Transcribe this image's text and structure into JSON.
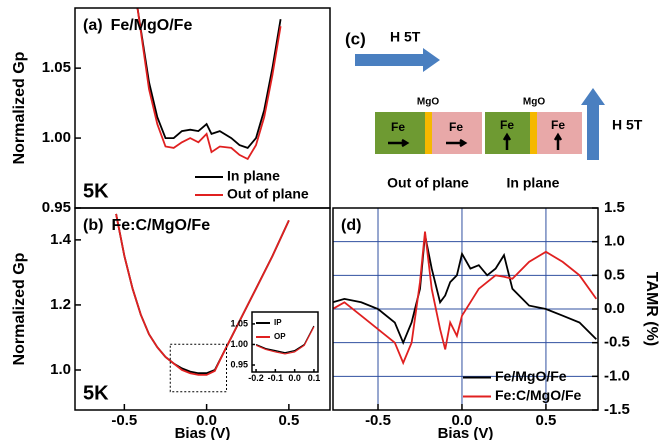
{
  "chart_data": [
    {
      "type": "line",
      "panel": "(a)",
      "title": "Fe/MgO/Fe",
      "annotation": "5K",
      "ylabel": "Normalized Gp",
      "xlim": [
        -0.8,
        0.75
      ],
      "ylim": [
        0.95,
        1.093
      ],
      "yticks": [
        0.95,
        {
          "value": 1,
          "label": "1.00"
        },
        1.05
      ],
      "x": [
        -0.42,
        -0.35,
        -0.3,
        -0.25,
        -0.2,
        -0.15,
        -0.1,
        -0.05,
        0,
        0.03,
        0.08,
        0.15,
        0.2,
        0.25,
        0.3,
        0.35,
        0.4,
        0.45
      ],
      "series": [
        {
          "name": "In plane",
          "color": "#000000",
          "values": [
            1.093,
            1.04,
            1.015,
            1.0,
            1.0,
            1.005,
            1.006,
            1.005,
            1.01,
            1.003,
            1.005,
            1.0,
            0.995,
            0.993,
            1.0,
            1.02,
            1.05,
            1.085
          ]
        },
        {
          "name": "Out of plane",
          "color": "#e02020",
          "values": [
            1.093,
            1.035,
            1.01,
            0.994,
            0.993,
            0.997,
            1.0,
            0.997,
            1.003,
            0.99,
            0.994,
            0.993,
            0.988,
            0.985,
            0.995,
            1.015,
            1.045,
            1.08
          ]
        }
      ],
      "legend": "lower right"
    },
    {
      "type": "line",
      "panel": "(b)",
      "title": "Fe:C/MgO/Fe",
      "annotation": "5K",
      "ylabel": "Normalized Gp",
      "xlabel": "Bias (V)",
      "xlim": [
        -0.8,
        0.75
      ],
      "ylim": [
        0.877,
        1.498
      ],
      "xticks": [
        -0.5,
        {
          "value": 0,
          "label": "0.0"
        },
        0.5
      ],
      "yticks": [
        {
          "value": 1,
          "label": "1.0"
        },
        1.2,
        1.4
      ],
      "x": [
        -0.55,
        -0.5,
        -0.45,
        -0.4,
        -0.35,
        -0.3,
        -0.25,
        -0.2,
        -0.15,
        -0.1,
        -0.05,
        0,
        0.05,
        0.1,
        0.2,
        0.3,
        0.4,
        0.5
      ],
      "series": [
        {
          "color": "#000000",
          "values": [
            1.48,
            1.35,
            1.25,
            1.17,
            1.11,
            1.07,
            1.04,
            1.02,
            1.005,
            0.995,
            0.99,
            0.99,
            1.0,
            1.05,
            1.15,
            1.25,
            1.35,
            1.46
          ]
        },
        {
          "color": "#e02020",
          "values": [
            1.48,
            1.35,
            1.25,
            1.17,
            1.11,
            1.07,
            1.04,
            1.02,
            1.0,
            0.99,
            0.985,
            0.985,
            0.997,
            1.05,
            1.15,
            1.25,
            1.35,
            1.46
          ]
        }
      ]
    },
    {
      "type": "line",
      "xlim": [
        -0.221,
        0.121
      ],
      "ylim": [
        0.933,
        1.079
      ],
      "xticks": [
        -0.2,
        -0.1,
        {
          "value": 0,
          "label": "0.0"
        },
        0.1
      ],
      "yticks": [
        0.95,
        {
          "value": 1,
          "label": "1.00"
        },
        1.05
      ],
      "x": [
        -0.2,
        -0.15,
        -0.1,
        -0.05,
        0,
        0.05,
        0.1
      ],
      "series": [
        {
          "name": "IP",
          "color": "#000000",
          "values": [
            1.0,
            0.99,
            0.985,
            0.98,
            0.985,
            1.0,
            1.045
          ]
        },
        {
          "name": "OP",
          "color": "#e02020",
          "values": [
            0.998,
            0.988,
            0.982,
            0.977,
            0.982,
            0.998,
            1.043
          ]
        }
      ],
      "legend": "upper left"
    },
    {
      "type": "line",
      "panel": "(d)",
      "xlabel": "Bias (V)",
      "y2label": "TAMR (%)",
      "xlim": [
        -0.768,
        0.81
      ],
      "y2lim": [
        -1.5,
        1.5
      ],
      "grid": true,
      "grid_color": "#3050a0",
      "xticks": [
        -0.5,
        {
          "value": 0,
          "label": "0.0"
        },
        0.5
      ],
      "y2ticks": [
        -1.5,
        {
          "value": -1,
          "label": "-1.0"
        },
        -0.5,
        {
          "value": 0,
          "label": "0.0"
        },
        0.5,
        {
          "value": 1,
          "label": "1.0"
        },
        1.5
      ],
      "x": [
        -0.77,
        -0.7,
        -0.6,
        -0.5,
        -0.4,
        -0.35,
        -0.3,
        -0.25,
        -0.22,
        -0.18,
        -0.13,
        -0.1,
        -0.07,
        -0.03,
        0,
        0.05,
        0.1,
        0.15,
        0.2,
        0.25,
        0.3,
        0.4,
        0.5,
        0.6,
        0.7,
        0.8
      ],
      "series": [
        {
          "name": "Fe/MgO/Fe",
          "color": "#000000",
          "axis": "y2",
          "values": [
            0.1,
            0.15,
            0.1,
            0.0,
            -0.2,
            -0.5,
            -0.2,
            0.3,
            1.1,
            0.6,
            0.1,
            0.2,
            0.4,
            0.5,
            0.82,
            0.6,
            0.65,
            0.5,
            0.6,
            0.8,
            0.3,
            0.05,
            0.0,
            -0.1,
            -0.2,
            -0.45
          ]
        },
        {
          "name": "Fe:C/MgO/Fe",
          "color": "#e02020",
          "axis": "y2",
          "values": [
            0.0,
            0.1,
            -0.1,
            -0.3,
            -0.5,
            -0.8,
            -0.5,
            0.4,
            1.15,
            0.3,
            -0.3,
            -0.6,
            -0.2,
            -0.4,
            -0.1,
            0.1,
            0.3,
            0.4,
            0.5,
            0.48,
            0.45,
            0.7,
            0.85,
            0.7,
            0.5,
            0.15
          ]
        }
      ],
      "legend": "lower right"
    }
  ],
  "diagram": {
    "label": "(c)",
    "field_top": "H  5T",
    "field_right": "H  5T",
    "left": {
      "barrier": "MgO",
      "layer1": "Fe",
      "layer2": "Fe",
      "caption": "Out of plane"
    },
    "right": {
      "barrier": "MgO",
      "layer1": "Fe",
      "layer2": "Fe",
      "caption": "In plane"
    }
  }
}
